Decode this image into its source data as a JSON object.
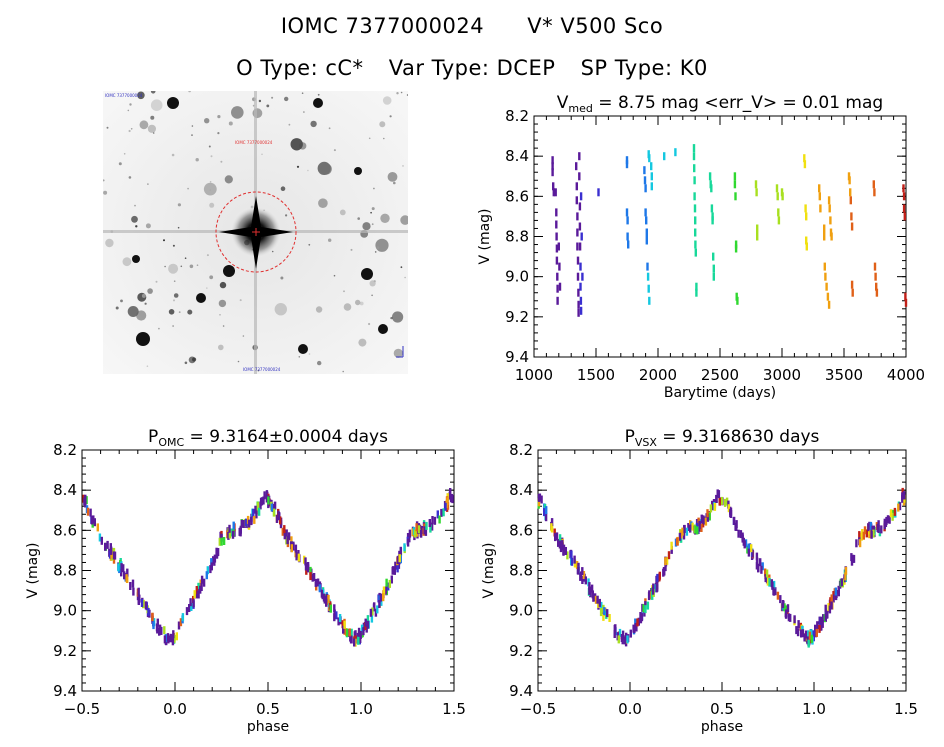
{
  "header": {
    "id_text": "IOMC 7377000024",
    "name_text": "V* V500 Sco",
    "otype": "O Type: cC*",
    "vartype": "Var Type: DCEP",
    "sptype": "SP Type: K0"
  },
  "image_panel": {
    "top_left_label": "IOMC 7377000024",
    "marker_label": "IOMC 7377000024",
    "bottom_label": "IOMC 7377000024"
  },
  "chart_data": [
    {
      "type": "scatter",
      "title_main": "V",
      "title_sub": "med",
      "title_rest": " = 8.75 mag <err_V> = 0.01 mag",
      "xlabel": "Barytime (days)",
      "ylabel": "V (mag)",
      "xlim": [
        1000,
        4000
      ],
      "ylim": [
        9.4,
        8.2
      ],
      "xticks": [
        "1000",
        "1500",
        "2000",
        "2500",
        "3000",
        "3500",
        "4000"
      ],
      "xtick_values": [
        1000,
        1500,
        2000,
        2500,
        3000,
        3500,
        4000
      ],
      "yticks": [
        "8.2",
        "8.4",
        "8.6",
        "8.8",
        "9.0",
        "9.2",
        "9.4"
      ],
      "ytick_values": [
        8.2,
        8.4,
        8.6,
        8.8,
        9.0,
        9.2,
        9.4
      ],
      "points": [
        [
          1150,
          8.42
        ],
        [
          1150,
          8.45
        ],
        [
          1150,
          8.48
        ],
        [
          1155,
          8.55
        ],
        [
          1160,
          8.58
        ],
        [
          1175,
          8.58
        ],
        [
          1180,
          8.68
        ],
        [
          1180,
          8.74
        ],
        [
          1182,
          8.8
        ],
        [
          1185,
          8.86
        ],
        [
          1185,
          8.92
        ],
        [
          1188,
          9.0
        ],
        [
          1190,
          9.06
        ],
        [
          1190,
          9.12
        ],
        [
          1200,
          8.85
        ],
        [
          1205,
          8.95
        ],
        [
          1210,
          9.05
        ],
        [
          1340,
          8.45
        ],
        [
          1345,
          8.55
        ],
        [
          1345,
          8.62
        ],
        [
          1350,
          8.7
        ],
        [
          1350,
          8.78
        ],
        [
          1350,
          8.85
        ],
        [
          1355,
          8.92
        ],
        [
          1355,
          9.0
        ],
        [
          1358,
          9.08
        ],
        [
          1360,
          9.14
        ],
        [
          1360,
          9.18
        ],
        [
          1365,
          8.4
        ],
        [
          1365,
          8.5
        ],
        [
          1370,
          8.65
        ],
        [
          1370,
          8.75
        ],
        [
          1372,
          8.85
        ],
        [
          1375,
          8.95
        ],
        [
          1375,
          9.05
        ],
        [
          1378,
          9.12
        ],
        [
          1380,
          9.17
        ],
        [
          1380,
          8.6
        ],
        [
          1385,
          8.8
        ],
        [
          1390,
          9.0
        ],
        [
          1520,
          8.58
        ],
        [
          1750,
          8.42
        ],
        [
          1750,
          8.44
        ],
        [
          1750,
          8.68
        ],
        [
          1755,
          8.72
        ],
        [
          1755,
          8.8
        ],
        [
          1760,
          8.84
        ],
        [
          1890,
          8.47
        ],
        [
          1895,
          8.52
        ],
        [
          1900,
          8.56
        ],
        [
          1900,
          8.68
        ],
        [
          1905,
          8.72
        ],
        [
          1910,
          8.78
        ],
        [
          1910,
          8.82
        ],
        [
          1915,
          8.95
        ],
        [
          1920,
          9.0
        ],
        [
          1925,
          9.06
        ],
        [
          1930,
          9.12
        ],
        [
          1925,
          8.39
        ],
        [
          1930,
          8.41
        ],
        [
          1945,
          8.45
        ],
        [
          1950,
          8.5
        ],
        [
          1950,
          8.55
        ],
        [
          2050,
          8.4
        ],
        [
          2140,
          8.38
        ],
        [
          2290,
          8.36
        ],
        [
          2290,
          8.4
        ],
        [
          2292,
          8.46
        ],
        [
          2295,
          8.52
        ],
        [
          2295,
          8.6
        ],
        [
          2298,
          8.66
        ],
        [
          2300,
          8.72
        ],
        [
          2300,
          8.78
        ],
        [
          2302,
          8.84
        ],
        [
          2305,
          8.88
        ],
        [
          2310,
          9.05
        ],
        [
          2310,
          9.08
        ],
        [
          2420,
          8.5
        ],
        [
          2425,
          8.54
        ],
        [
          2430,
          8.56
        ],
        [
          2435,
          8.66
        ],
        [
          2440,
          8.7
        ],
        [
          2440,
          8.72
        ],
        [
          2445,
          8.9
        ],
        [
          2450,
          8.96
        ],
        [
          2450,
          9.0
        ],
        [
          2620,
          8.5
        ],
        [
          2620,
          8.54
        ],
        [
          2625,
          8.6
        ],
        [
          2630,
          8.84
        ],
        [
          2630,
          8.86
        ],
        [
          2635,
          9.1
        ],
        [
          2640,
          9.12
        ],
        [
          2790,
          8.54
        ],
        [
          2795,
          8.58
        ],
        [
          2800,
          8.76
        ],
        [
          2800,
          8.8
        ],
        [
          2960,
          8.56
        ],
        [
          2965,
          8.6
        ],
        [
          2970,
          8.68
        ],
        [
          2975,
          8.72
        ],
        [
          3000,
          8.58
        ],
        [
          3005,
          8.6
        ],
        [
          3180,
          8.41
        ],
        [
          3185,
          8.44
        ],
        [
          3190,
          8.66
        ],
        [
          3195,
          8.7
        ],
        [
          3195,
          8.82
        ],
        [
          3200,
          8.85
        ],
        [
          3300,
          8.56
        ],
        [
          3305,
          8.6
        ],
        [
          3310,
          8.66
        ],
        [
          3340,
          8.76
        ],
        [
          3340,
          8.8
        ],
        [
          3345,
          8.95
        ],
        [
          3350,
          9.0
        ],
        [
          3360,
          9.05
        ],
        [
          3370,
          9.1
        ],
        [
          3380,
          9.14
        ],
        [
          3380,
          8.62
        ],
        [
          3385,
          8.66
        ],
        [
          3390,
          8.72
        ],
        [
          3395,
          8.78
        ],
        [
          3400,
          8.8
        ],
        [
          3540,
          8.5
        ],
        [
          3545,
          8.52
        ],
        [
          3550,
          8.58
        ],
        [
          3555,
          8.62
        ],
        [
          3560,
          8.7
        ],
        [
          3565,
          8.75
        ],
        [
          3565,
          9.04
        ],
        [
          3570,
          9.08
        ],
        [
          3740,
          8.54
        ],
        [
          3745,
          8.58
        ],
        [
          3750,
          8.95
        ],
        [
          3755,
          9.0
        ],
        [
          3760,
          9.05
        ],
        [
          3765,
          9.08
        ],
        [
          3980,
          8.56
        ],
        [
          3985,
          8.6
        ],
        [
          3985,
          8.66
        ],
        [
          3990,
          8.7
        ],
        [
          3995,
          9.1
        ],
        [
          4000,
          9.13
        ]
      ]
    },
    {
      "type": "scatter",
      "title_main": "P",
      "title_sub": "OMC",
      "title_rest": " = 9.3164±0.0004 days",
      "xlabel": "phase",
      "ylabel": "V (mag)",
      "xlim": [
        -0.5,
        1.5
      ],
      "ylim": [
        9.4,
        8.2
      ],
      "xticks": [
        "−0.5",
        "0.0",
        "0.5",
        "1.0",
        "1.5"
      ],
      "xtick_values": [
        -0.5,
        0.0,
        0.5,
        1.0,
        1.5
      ],
      "yticks": [
        "8.2",
        "8.4",
        "8.6",
        "8.8",
        "9.0",
        "9.2",
        "9.4"
      ],
      "ytick_values": [
        8.2,
        8.4,
        8.6,
        8.8,
        9.0,
        9.2,
        9.4
      ],
      "curve": [
        [
          0.0,
          9.12
        ],
        [
          0.05,
          9.04
        ],
        [
          0.1,
          8.95
        ],
        [
          0.15,
          8.86
        ],
        [
          0.2,
          8.76
        ],
        [
          0.25,
          8.64
        ],
        [
          0.3,
          8.6
        ],
        [
          0.35,
          8.59
        ],
        [
          0.4,
          8.56
        ],
        [
          0.45,
          8.49
        ],
        [
          0.48,
          8.43
        ],
        [
          0.52,
          8.46
        ],
        [
          0.56,
          8.55
        ],
        [
          0.6,
          8.63
        ],
        [
          0.65,
          8.7
        ],
        [
          0.7,
          8.77
        ],
        [
          0.75,
          8.84
        ],
        [
          0.8,
          8.92
        ],
        [
          0.85,
          9.0
        ],
        [
          0.9,
          9.07
        ],
        [
          0.94,
          9.12
        ],
        [
          0.97,
          9.14
        ],
        [
          1.0,
          9.12
        ]
      ]
    },
    {
      "type": "scatter",
      "title_main": "P",
      "title_sub": "VSX",
      "title_rest": " = 9.3168630 days",
      "xlabel": "phase",
      "ylabel": "V (mag)",
      "xlim": [
        -0.5,
        1.5
      ],
      "ylim": [
        9.4,
        8.2
      ],
      "xticks": [
        "−0.5",
        "0.0",
        "0.5",
        "1.0",
        "1.5"
      ],
      "xtick_values": [
        -0.5,
        0.0,
        0.5,
        1.0,
        1.5
      ],
      "yticks": [
        "8.2",
        "8.4",
        "8.6",
        "8.8",
        "9.0",
        "9.2",
        "9.4"
      ],
      "ytick_values": [
        8.2,
        8.4,
        8.6,
        8.8,
        9.0,
        9.2,
        9.4
      ],
      "curve": [
        [
          0.0,
          9.12
        ],
        [
          0.05,
          9.04
        ],
        [
          0.1,
          8.95
        ],
        [
          0.15,
          8.86
        ],
        [
          0.2,
          8.76
        ],
        [
          0.25,
          8.64
        ],
        [
          0.3,
          8.6
        ],
        [
          0.35,
          8.59
        ],
        [
          0.4,
          8.56
        ],
        [
          0.45,
          8.49
        ],
        [
          0.48,
          8.43
        ],
        [
          0.52,
          8.46
        ],
        [
          0.56,
          8.55
        ],
        [
          0.6,
          8.63
        ],
        [
          0.65,
          8.7
        ],
        [
          0.7,
          8.77
        ],
        [
          0.75,
          8.84
        ],
        [
          0.8,
          8.92
        ],
        [
          0.85,
          9.0
        ],
        [
          0.9,
          9.07
        ],
        [
          0.94,
          9.12
        ],
        [
          0.97,
          9.14
        ],
        [
          1.0,
          9.12
        ]
      ]
    }
  ],
  "colors": {
    "sequence": [
      "#5a1a9a",
      "#3a2fd0",
      "#1e78e8",
      "#14c8e0",
      "#18d89a",
      "#30d830",
      "#a8e020",
      "#f0e010",
      "#f0a010",
      "#e06018",
      "#c02018"
    ],
    "circle": "#e03030"
  }
}
